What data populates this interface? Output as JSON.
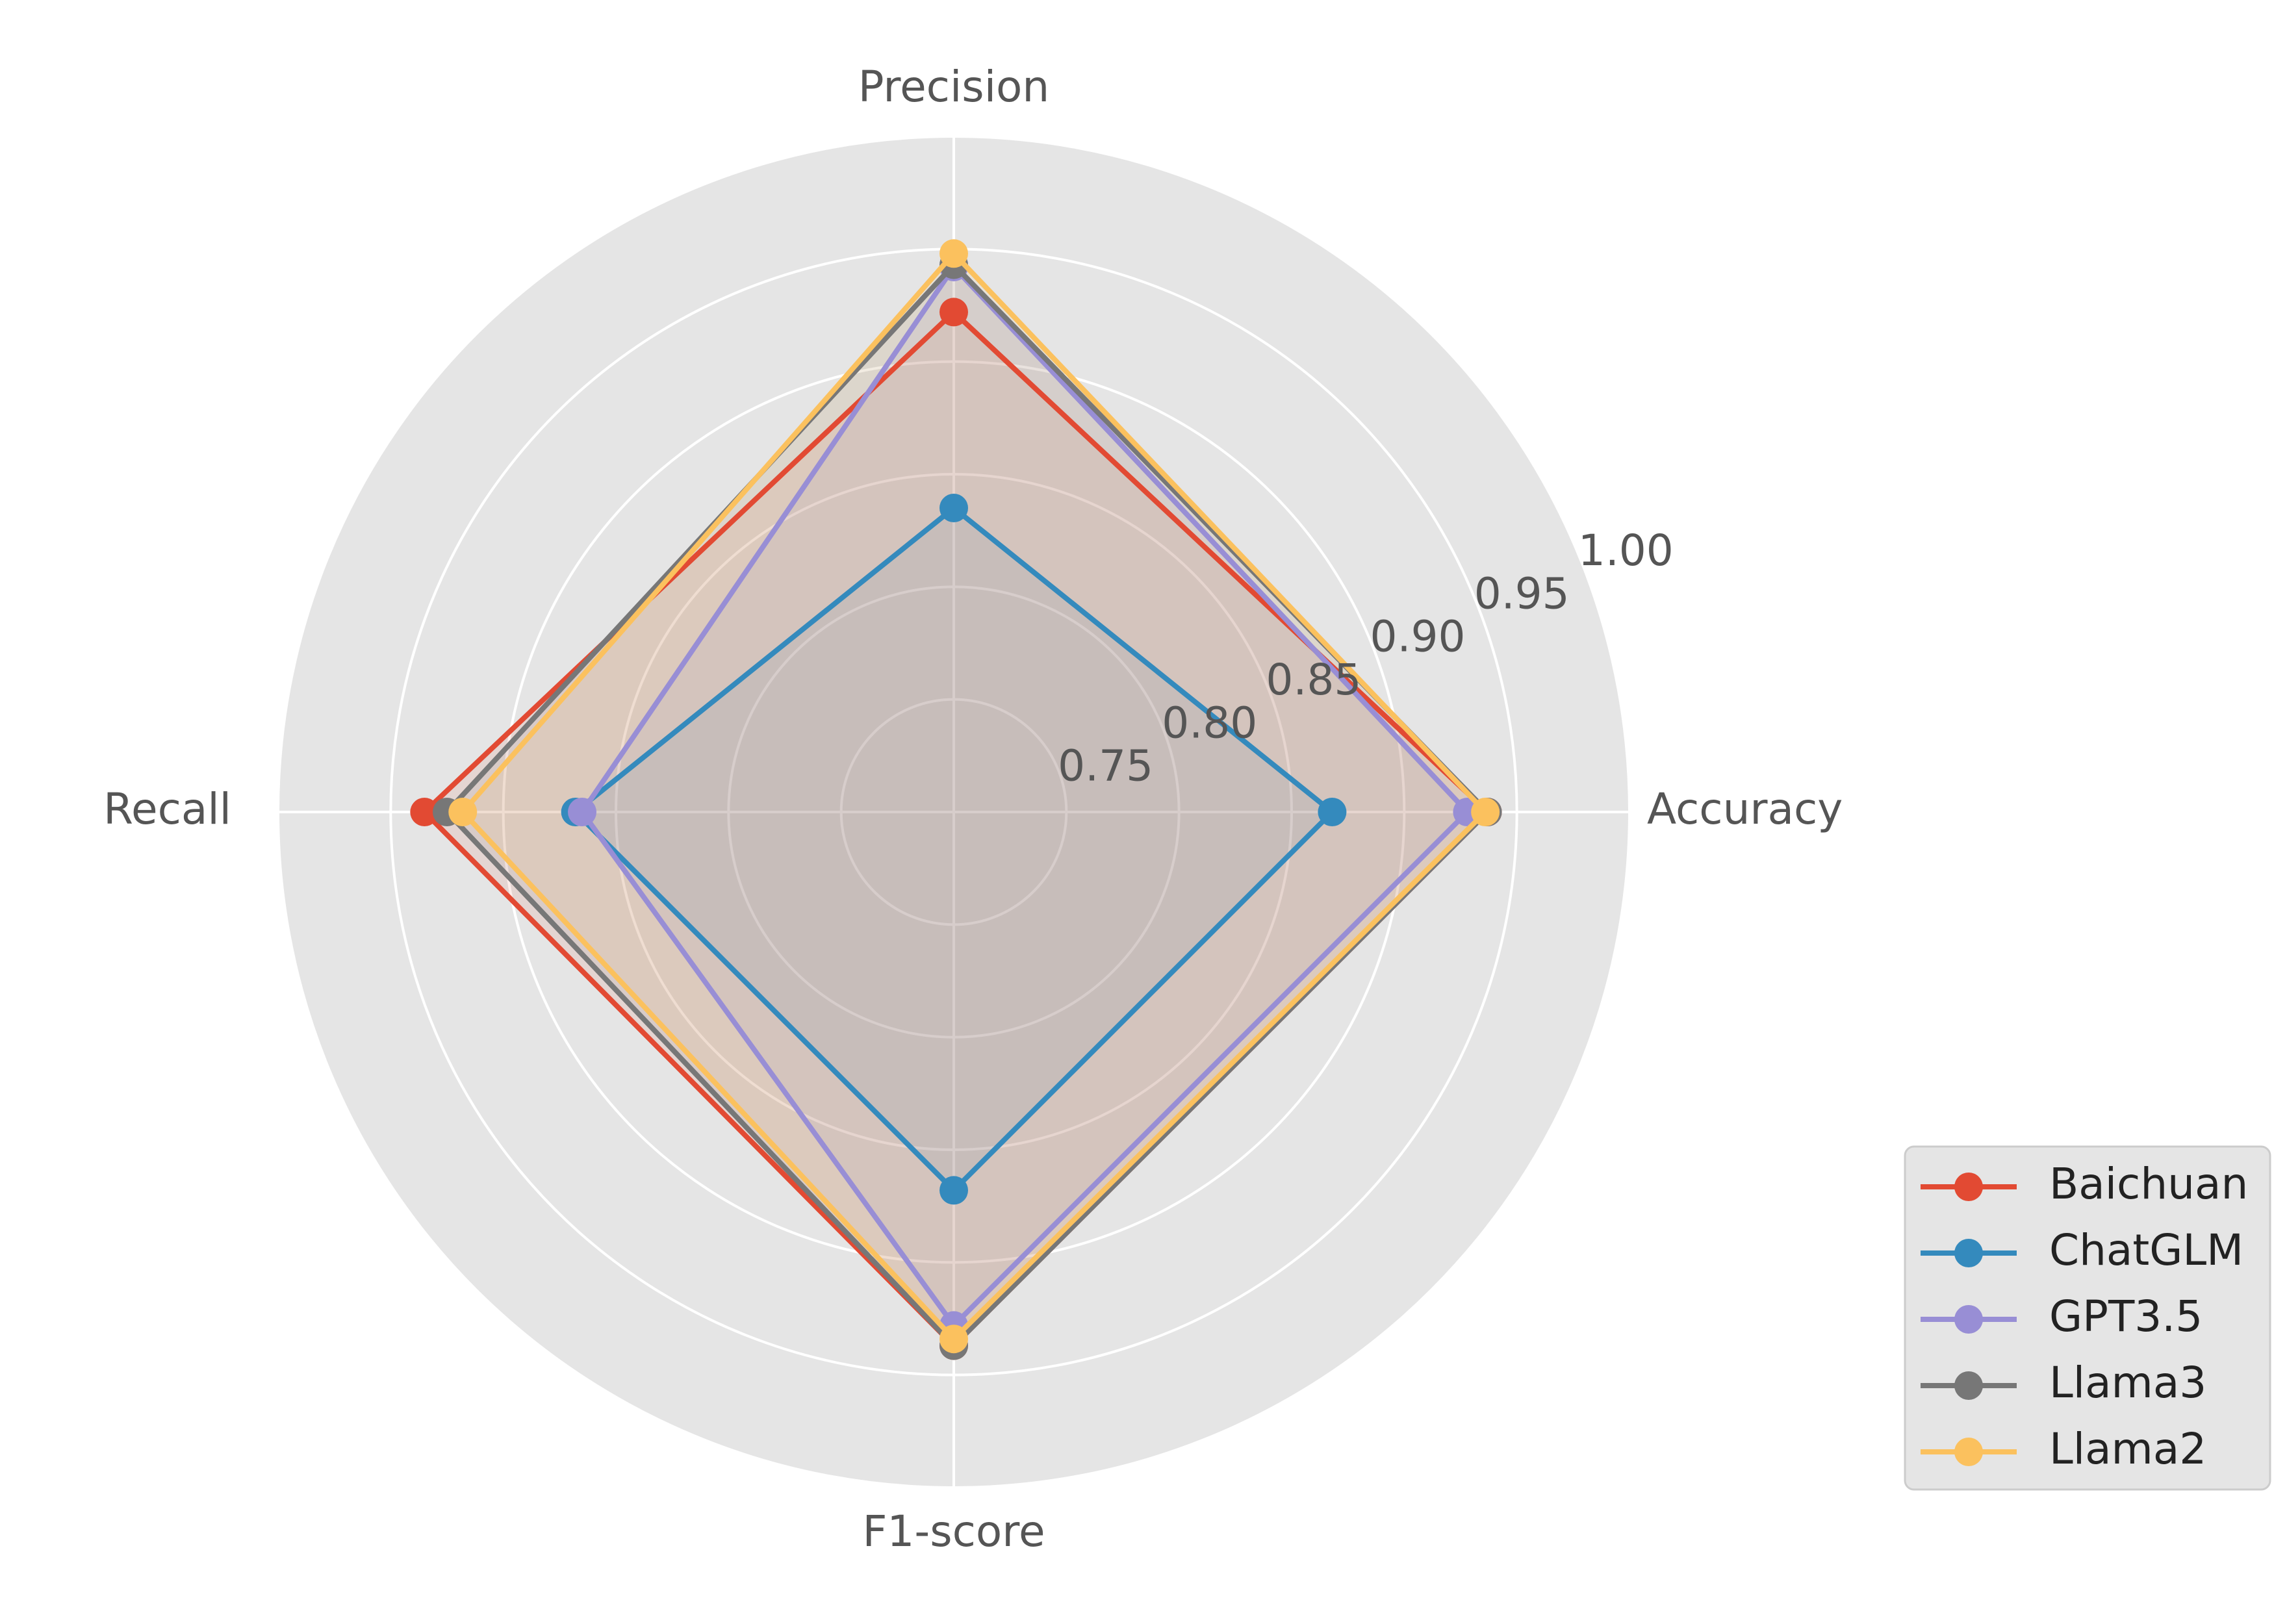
{
  "chart_data": {
    "type": "radar",
    "axes": [
      "Accuracy",
      "Precision",
      "Recall",
      "F1-score"
    ],
    "rlim": [
      0.7,
      1.0
    ],
    "rticks": [
      0.75,
      0.8,
      0.85,
      0.9,
      0.95,
      1.0
    ],
    "rtick_labels": [
      "0.75",
      "0.80",
      "0.85",
      "0.90",
      "0.95",
      "1.00"
    ],
    "grid": true,
    "legend_position": "bottom-right",
    "series": [
      {
        "name": "Baichuan",
        "color": "#E24A33",
        "values": [
          0.937,
          0.922,
          0.935,
          0.937
        ]
      },
      {
        "name": "ChatGLM",
        "color": "#348ABD",
        "values": [
          0.868,
          0.835,
          0.868,
          0.868
        ]
      },
      {
        "name": "GPT3.5",
        "color": "#988ED5",
        "values": [
          0.928,
          0.942,
          0.865,
          0.928
        ]
      },
      {
        "name": "Llama3",
        "color": "#777777",
        "values": [
          0.937,
          0.943,
          0.925,
          0.937
        ]
      },
      {
        "name": "Llama2",
        "color": "#FBC15E",
        "values": [
          0.936,
          0.948,
          0.918,
          0.934
        ]
      }
    ]
  }
}
